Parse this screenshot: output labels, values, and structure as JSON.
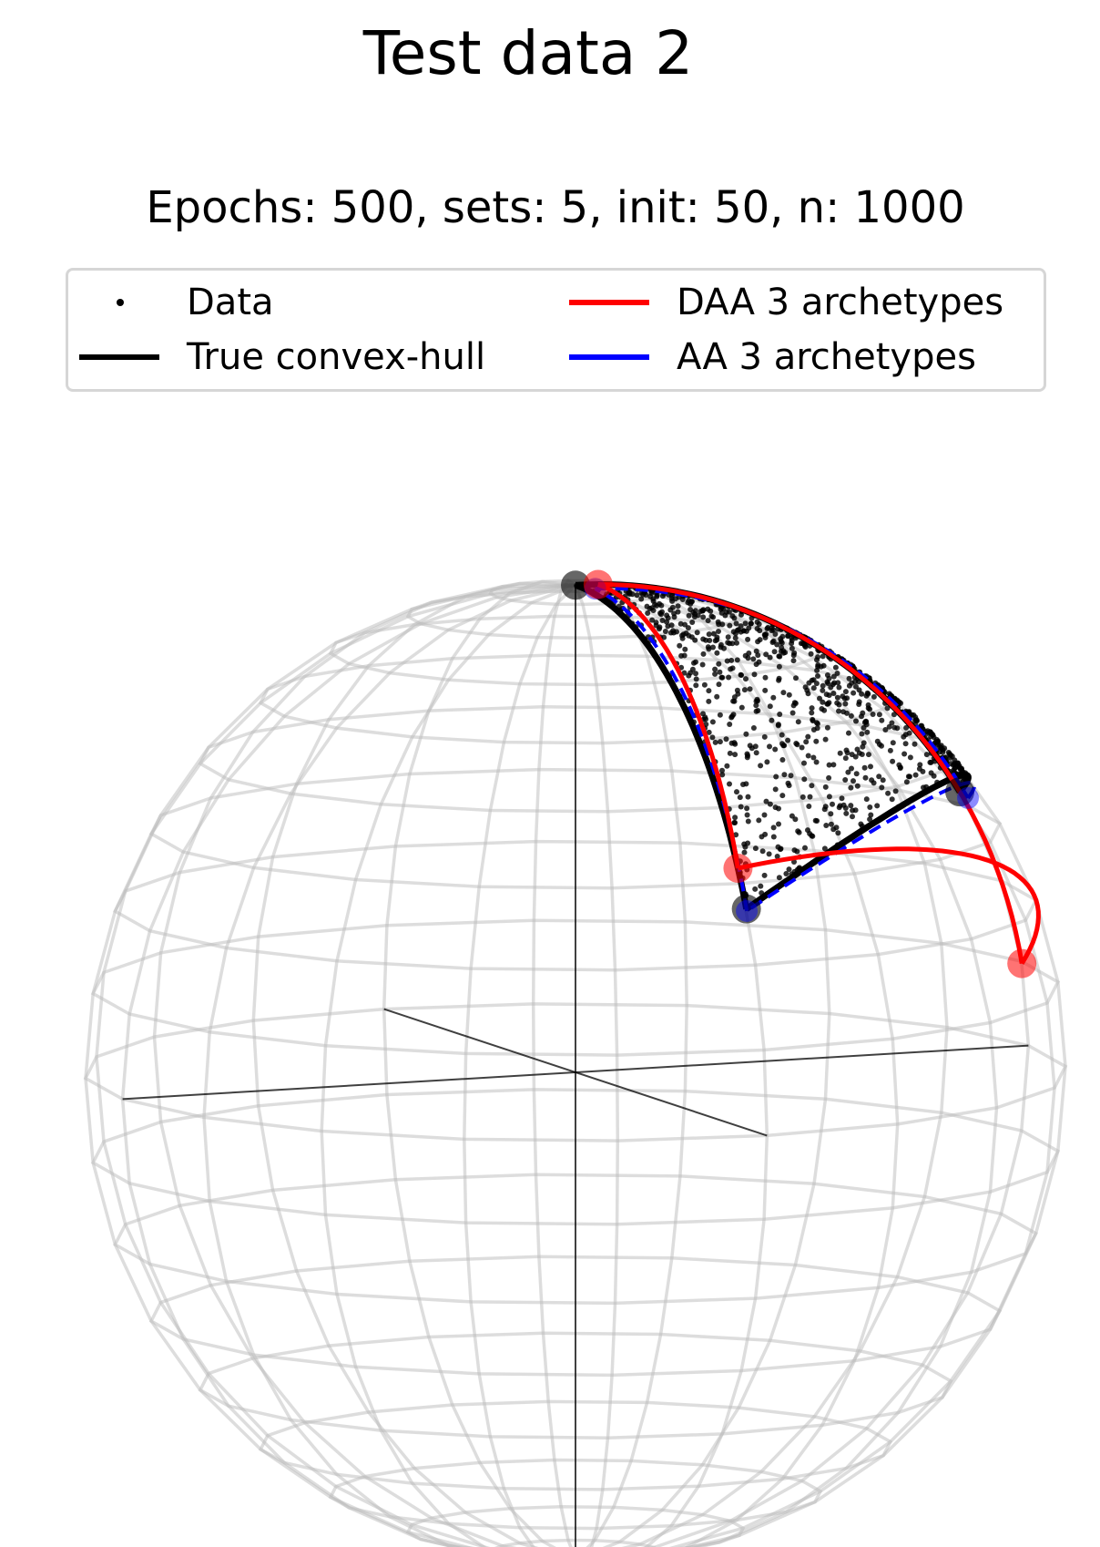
{
  "chart_data": {
    "type": "scatter",
    "title": "Test data 2",
    "subtitle": "Epochs: 500, sets: 5, init: 50, n: 1000",
    "projection": "3d-unit-sphere",
    "legend_placement": "top",
    "legend": [
      {
        "label": "Data",
        "marker": "point",
        "color": "#000000"
      },
      {
        "label": "True convex-hull",
        "marker": "line",
        "color": "#000000"
      },
      {
        "label": "DAA 3 archetypes",
        "marker": "line",
        "color": "#ff0000"
      },
      {
        "label": "AA 3 archetypes",
        "marker": "line",
        "color": "#0000ff"
      }
    ],
    "series": [
      {
        "name": "True convex-hull",
        "points": [
          [
            0.0,
            0.0,
            1.0
          ],
          [
            0.85,
            0.0,
            0.53
          ],
          [
            0.0,
            0.89,
            0.45
          ]
        ]
      },
      {
        "name": "DAA 3 archetypes",
        "points": [
          [
            0.05,
            0.0,
            1.0
          ],
          [
            0.99,
            0.0,
            0.17
          ],
          [
            0.0,
            0.85,
            0.53
          ]
        ]
      },
      {
        "name": "AA 3 archetypes",
        "points": [
          [
            0.02,
            0.05,
            0.94
          ],
          [
            0.82,
            0.03,
            0.5
          ],
          [
            0.0,
            0.86,
            0.43
          ]
        ]
      }
    ],
    "n_points": 1000,
    "grid": true,
    "colors": {
      "data": "#000000",
      "hull": "#000000",
      "daa": "#ff0000",
      "aa": "#0000ff",
      "grid": "#bcbcbc"
    }
  }
}
